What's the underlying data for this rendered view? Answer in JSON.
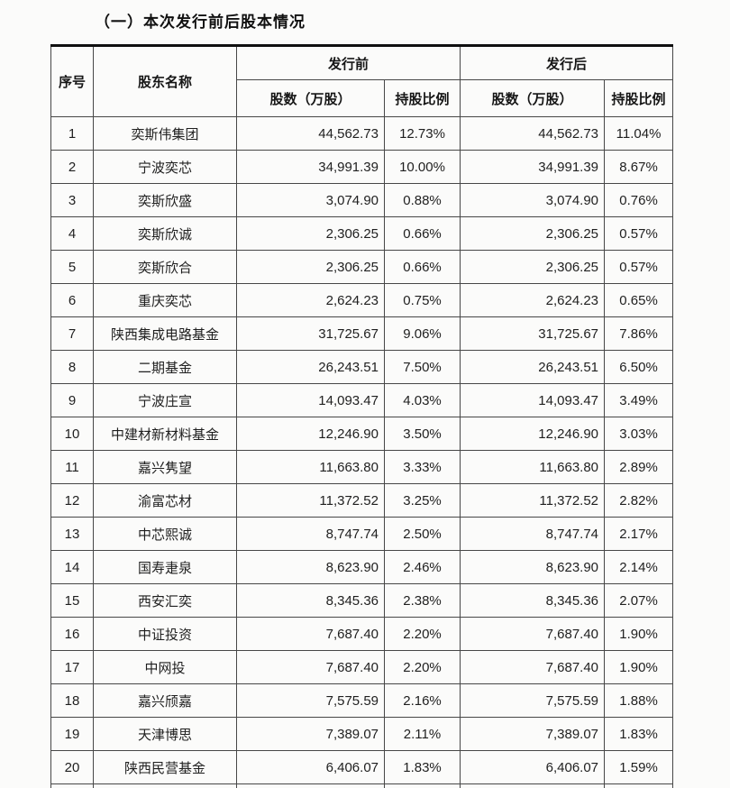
{
  "title": "（一）本次发行前后股本情况",
  "table": {
    "headers": {
      "index": "序号",
      "name": "股东名称",
      "before": "发行前",
      "after": "发行后",
      "shares": "股数（万股）",
      "ratio": "持股比例"
    },
    "rows": [
      {
        "no": "1",
        "name": "奕斯伟集团",
        "shares_before": "44,562.73",
        "pct_before": "12.73%",
        "shares_after": "44,562.73",
        "pct_after": "11.04%"
      },
      {
        "no": "2",
        "name": "宁波奕芯",
        "shares_before": "34,991.39",
        "pct_before": "10.00%",
        "shares_after": "34,991.39",
        "pct_after": "8.67%"
      },
      {
        "no": "3",
        "name": "奕斯欣盛",
        "shares_before": "3,074.90",
        "pct_before": "0.88%",
        "shares_after": "3,074.90",
        "pct_after": "0.76%"
      },
      {
        "no": "4",
        "name": "奕斯欣诚",
        "shares_before": "2,306.25",
        "pct_before": "0.66%",
        "shares_after": "2,306.25",
        "pct_after": "0.57%"
      },
      {
        "no": "5",
        "name": "奕斯欣合",
        "shares_before": "2,306.25",
        "pct_before": "0.66%",
        "shares_after": "2,306.25",
        "pct_after": "0.57%"
      },
      {
        "no": "6",
        "name": "重庆奕芯",
        "shares_before": "2,624.23",
        "pct_before": "0.75%",
        "shares_after": "2,624.23",
        "pct_after": "0.65%"
      },
      {
        "no": "7",
        "name": "陕西集成电路基金",
        "shares_before": "31,725.67",
        "pct_before": "9.06%",
        "shares_after": "31,725.67",
        "pct_after": "7.86%"
      },
      {
        "no": "8",
        "name": "二期基金",
        "shares_before": "26,243.51",
        "pct_before": "7.50%",
        "shares_after": "26,243.51",
        "pct_after": "6.50%"
      },
      {
        "no": "9",
        "name": "宁波庄宣",
        "shares_before": "14,093.47",
        "pct_before": "4.03%",
        "shares_after": "14,093.47",
        "pct_after": "3.49%"
      },
      {
        "no": "10",
        "name": "中建材新材料基金",
        "shares_before": "12,246.90",
        "pct_before": "3.50%",
        "shares_after": "12,246.90",
        "pct_after": "3.03%"
      },
      {
        "no": "11",
        "name": "嘉兴隽望",
        "shares_before": "11,663.80",
        "pct_before": "3.33%",
        "shares_after": "11,663.80",
        "pct_after": "2.89%"
      },
      {
        "no": "12",
        "name": "渝富芯材",
        "shares_before": "11,372.52",
        "pct_before": "3.25%",
        "shares_after": "11,372.52",
        "pct_after": "2.82%"
      },
      {
        "no": "13",
        "name": "中芯熙诚",
        "shares_before": "8,747.74",
        "pct_before": "2.50%",
        "shares_after": "8,747.74",
        "pct_after": "2.17%"
      },
      {
        "no": "14",
        "name": "国寿疌泉",
        "shares_before": "8,623.90",
        "pct_before": "2.46%",
        "shares_after": "8,623.90",
        "pct_after": "2.14%"
      },
      {
        "no": "15",
        "name": "西安汇奕",
        "shares_before": "8,345.36",
        "pct_before": "2.38%",
        "shares_after": "8,345.36",
        "pct_after": "2.07%"
      },
      {
        "no": "16",
        "name": "中证投资",
        "shares_before": "7,687.40",
        "pct_before": "2.20%",
        "shares_after": "7,687.40",
        "pct_after": "1.90%"
      },
      {
        "no": "17",
        "name": "中网投",
        "shares_before": "7,687.40",
        "pct_before": "2.20%",
        "shares_after": "7,687.40",
        "pct_after": "1.90%"
      },
      {
        "no": "18",
        "name": "嘉兴颀嘉",
        "shares_before": "7,575.59",
        "pct_before": "2.16%",
        "shares_after": "7,575.59",
        "pct_after": "1.88%"
      },
      {
        "no": "19",
        "name": "天津博思",
        "shares_before": "7,389.07",
        "pct_before": "2.11%",
        "shares_after": "7,389.07",
        "pct_after": "1.83%"
      },
      {
        "no": "20",
        "name": "陕西民营基金",
        "shares_before": "6,406.07",
        "pct_before": "1.83%",
        "shares_after": "6,406.07",
        "pct_after": "1.59%"
      }
    ]
  }
}
